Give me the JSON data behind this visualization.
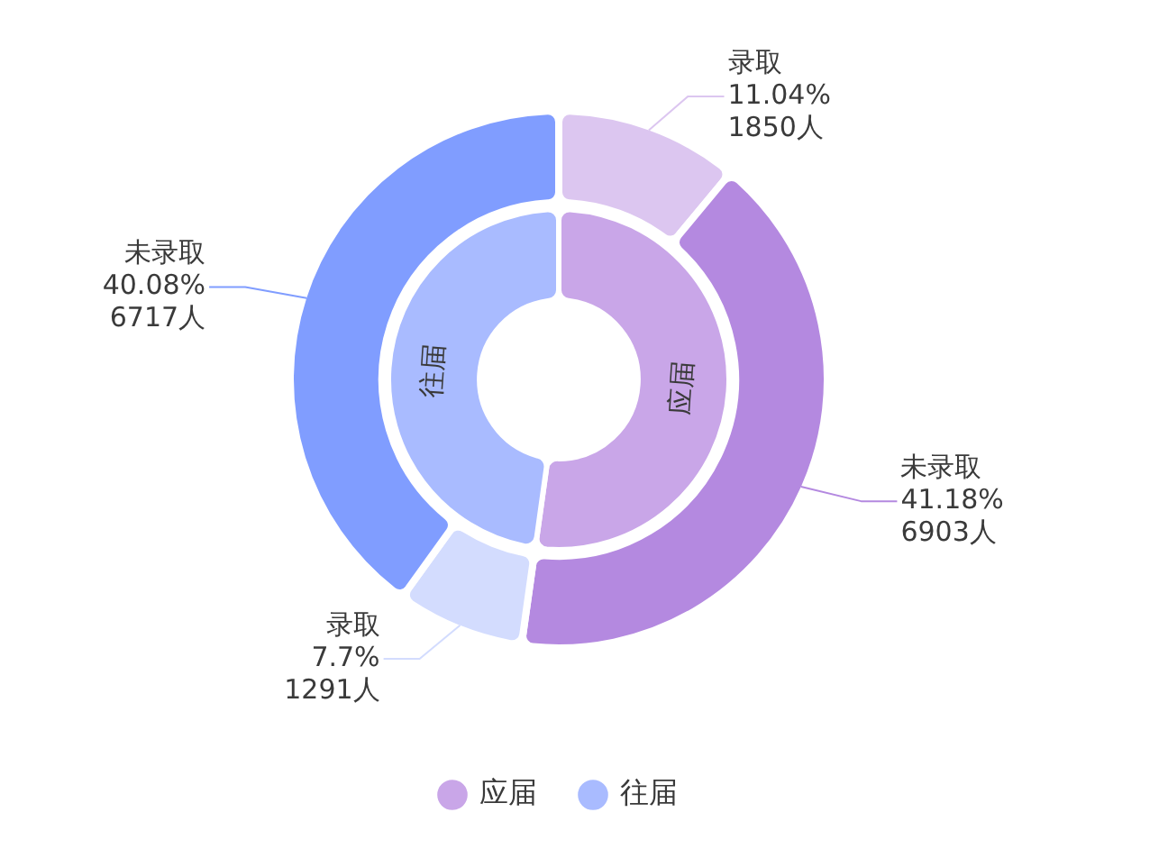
{
  "chart_data": [
    {
      "type": "donut",
      "legend": "bottom",
      "categories": [
        "应届",
        "往届"
      ],
      "values": [
        52.2,
        47.8
      ],
      "colors": [
        "#c9a6e8",
        "#a9bbff"
      ]
    },
    {
      "type": "donut",
      "categories": [
        "录取",
        "未录取",
        "录取",
        "未录取"
      ],
      "values": [
        1850,
        6903,
        1291,
        6717
      ],
      "colors": [
        "#dcc6f0",
        "#b489e0",
        "#d3dcfe",
        "#809dff"
      ],
      "value_labels": [
        "11.04%\n1850人",
        "41.18%\n6903人",
        "7.7%\n1291人",
        "40.08%\n6717人"
      ]
    }
  ]
}
